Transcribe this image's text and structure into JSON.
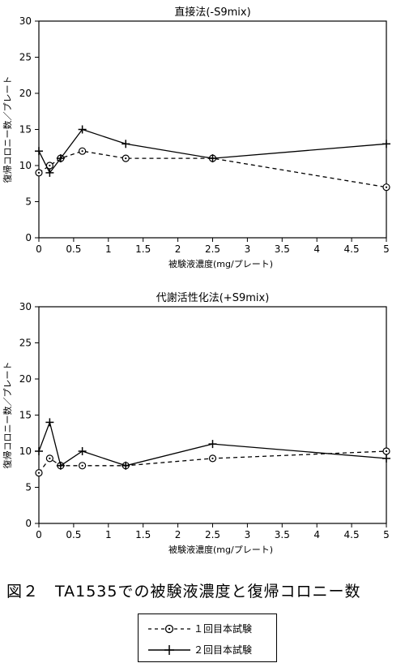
{
  "chart_data": [
    {
      "type": "line",
      "title": "直接法(-S9mix)",
      "xlabel": "被験液濃度(mg/プレート)",
      "ylabel": "復帰コロニー数／プレート",
      "xlim": [
        0,
        5
      ],
      "ylim": [
        0,
        30
      ],
      "xticks": [
        "0",
        "0.5",
        "1",
        "1.5",
        "2",
        "2.5",
        "3",
        "3.5",
        "4",
        "4.5",
        "5"
      ],
      "yticks": [
        "0",
        "5",
        "10",
        "15",
        "20",
        "25",
        "30"
      ],
      "grid": false,
      "series": [
        {
          "name": "1回目本試験",
          "style": "dashed",
          "marker": "circle-dot",
          "x": [
            0,
            0.156,
            0.313,
            0.625,
            1.25,
            2.5,
            5
          ],
          "y": [
            9,
            10,
            11,
            12,
            11,
            11,
            7
          ]
        },
        {
          "name": "2回目本試験",
          "style": "solid",
          "marker": "cross",
          "x": [
            0,
            0.156,
            0.313,
            0.625,
            1.25,
            2.5,
            5
          ],
          "y": [
            12,
            9,
            11,
            15,
            13,
            11,
            13
          ]
        }
      ]
    },
    {
      "type": "line",
      "title": "代謝活性化法(+S9mix)",
      "xlabel": "被験液濃度(mg/プレート)",
      "ylabel": "復帰コロニー数／プレート",
      "xlim": [
        0,
        5
      ],
      "ylim": [
        0,
        30
      ],
      "xticks": [
        "0",
        "0.5",
        "1",
        "1.5",
        "2",
        "2.5",
        "3",
        "3.5",
        "4",
        "4.5",
        "5"
      ],
      "yticks": [
        "0",
        "5",
        "10",
        "15",
        "20",
        "25",
        "30"
      ],
      "grid": false,
      "series": [
        {
          "name": "1回目本試験",
          "style": "dashed",
          "marker": "circle-dot",
          "x": [
            0,
            0.156,
            0.313,
            0.625,
            1.25,
            2.5,
            5
          ],
          "y": [
            7,
            9,
            8,
            8,
            8,
            9,
            10
          ]
        },
        {
          "name": "2回目本試験",
          "style": "solid",
          "marker": "cross",
          "x": [
            0,
            0.156,
            0.313,
            0.625,
            1.25,
            2.5,
            5
          ],
          "y": [
            10,
            14,
            8,
            10,
            8,
            11,
            9
          ]
        }
      ]
    }
  ],
  "caption": "図２　TA1535での被験液濃度と復帰コロニー数",
  "legend": [
    {
      "label": "１回目本試験",
      "marker": "circle-dot",
      "style": "dashed"
    },
    {
      "label": "２回目本試験",
      "marker": "cross",
      "style": "solid"
    }
  ]
}
